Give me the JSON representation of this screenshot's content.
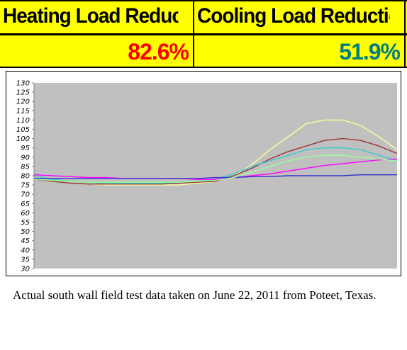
{
  "banner": {
    "heating_label": "Heating Load Reduction",
    "cooling_label": "Cooling Load Reduction",
    "heating_value": "82.6%",
    "cooling_value": "51.9%",
    "heating_value_color": "#ff0000",
    "cooling_value_color": "#008080",
    "background_color": "#ffff00"
  },
  "caption": "Actual south wall field test data taken on June 22, 2011 from Poteet, Texas.",
  "chart_data": {
    "type": "line",
    "title": "",
    "xlabel": "",
    "ylabel": "",
    "ylim": [
      30,
      130
    ],
    "y_ticks": [
      30,
      35,
      40,
      45,
      50,
      55,
      60,
      65,
      70,
      75,
      80,
      85,
      90,
      95,
      100,
      105,
      110,
      115,
      120,
      125,
      130
    ],
    "grid": false,
    "legend": "none",
    "plot_background": "#c0c0c0",
    "x": [
      0,
      0.05,
      0.1,
      0.15,
      0.2,
      0.25,
      0.3,
      0.35,
      0.4,
      0.45,
      0.5,
      0.55,
      0.6,
      0.65,
      0.7,
      0.75,
      0.8,
      0.85,
      0.9,
      0.95,
      1.0
    ],
    "series": [
      {
        "color": "#ffff99",
        "values": [
          78,
          77,
          76,
          75.5,
          75,
          75,
          75,
          75,
          75,
          76,
          77,
          80,
          86,
          94,
          101,
          108,
          110,
          110,
          107,
          101,
          94
        ]
      },
      {
        "color": "#993333",
        "values": [
          78,
          77,
          76,
          75.5,
          75.5,
          75.5,
          75.5,
          75.5,
          76,
          76.5,
          77,
          80,
          84,
          89,
          93,
          96,
          99,
          100,
          99,
          96,
          92
        ]
      },
      {
        "color": "#33cccc",
        "values": [
          80,
          78,
          77,
          76.5,
          76,
          76,
          76,
          76,
          76.5,
          77,
          78,
          81,
          85,
          88,
          91,
          94,
          95,
          95,
          94,
          91,
          88
        ]
      },
      {
        "color": "#ff00ff",
        "values": [
          80.5,
          80,
          79.5,
          79,
          79,
          78.5,
          78.5,
          78.5,
          78.5,
          78,
          78,
          79,
          80,
          81,
          82.5,
          84,
          85.5,
          86.5,
          87.5,
          88.5,
          89
        ]
      },
      {
        "color": "#3333cc",
        "values": [
          78.5,
          78.5,
          78.5,
          78.5,
          78.5,
          78.5,
          78.5,
          78.5,
          78.5,
          78.5,
          79,
          79,
          79.5,
          79.5,
          80,
          80,
          80,
          80,
          80.5,
          80.5,
          80.5
        ]
      },
      {
        "color": "#99ff99",
        "values": [
          78,
          77.5,
          77,
          76.5,
          76.5,
          76.5,
          76.5,
          76.5,
          76.5,
          77,
          77.5,
          79,
          82,
          85,
          88,
          90,
          91,
          91,
          90,
          89,
          88
        ]
      }
    ]
  }
}
